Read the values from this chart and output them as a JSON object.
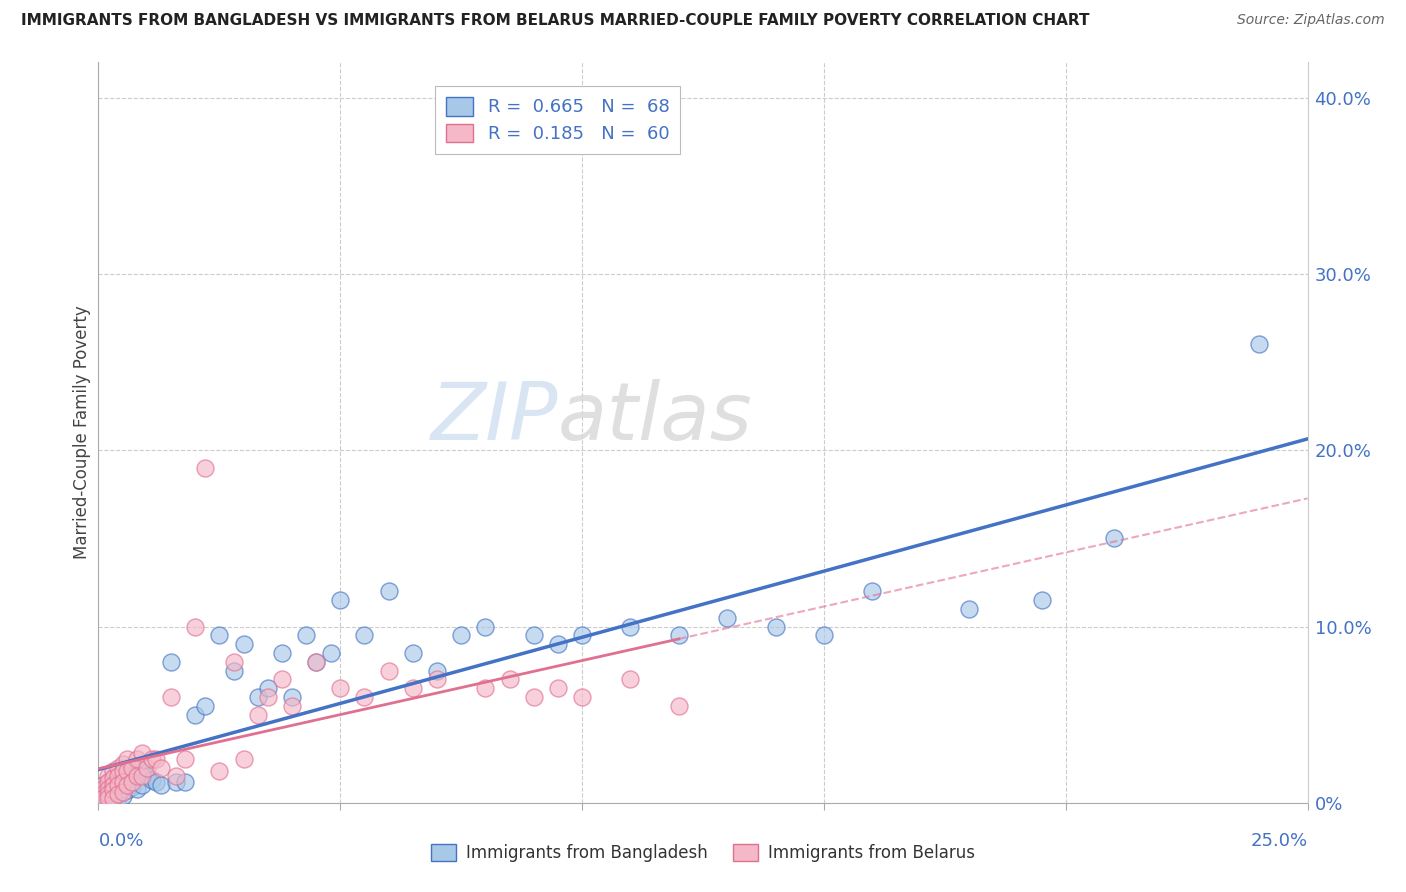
{
  "title": "IMMIGRANTS FROM BANGLADESH VS IMMIGRANTS FROM BELARUS MARRIED-COUPLE FAMILY POVERTY CORRELATION CHART",
  "source": "Source: ZipAtlas.com",
  "ylabel": "Married-Couple Family Poverty",
  "r_bangladesh": 0.665,
  "n_bangladesh": 68,
  "r_belarus": 0.185,
  "n_belarus": 60,
  "color_bangladesh": "#a8c8e8",
  "color_belarus": "#f4b8c8",
  "line_color_bangladesh": "#4472c4",
  "line_color_belarus": "#e07090",
  "watermark_zip": "ZIP",
  "watermark_atlas": "atlas",
  "xlim": [
    0,
    0.25
  ],
  "ylim": [
    0,
    0.42
  ],
  "yticks": [
    0.0,
    0.1,
    0.2,
    0.3,
    0.4
  ],
  "ytick_labels": [
    "0%",
    "10.0%",
    "20.0%",
    "30.0%",
    "40.0%"
  ],
  "bangladesh_x": [
    0.001,
    0.001,
    0.001,
    0.002,
    0.002,
    0.002,
    0.002,
    0.003,
    0.003,
    0.003,
    0.003,
    0.003,
    0.004,
    0.004,
    0.004,
    0.004,
    0.005,
    0.005,
    0.005,
    0.005,
    0.006,
    0.006,
    0.006,
    0.007,
    0.007,
    0.008,
    0.008,
    0.009,
    0.009,
    0.01,
    0.011,
    0.012,
    0.013,
    0.015,
    0.016,
    0.018,
    0.02,
    0.022,
    0.025,
    0.028,
    0.03,
    0.033,
    0.035,
    0.038,
    0.04,
    0.043,
    0.045,
    0.048,
    0.05,
    0.055,
    0.06,
    0.065,
    0.07,
    0.075,
    0.08,
    0.09,
    0.095,
    0.1,
    0.11,
    0.12,
    0.13,
    0.14,
    0.15,
    0.16,
    0.18,
    0.195,
    0.21,
    0.24
  ],
  "bangladesh_y": [
    0.01,
    0.006,
    0.004,
    0.012,
    0.008,
    0.005,
    0.003,
    0.014,
    0.01,
    0.007,
    0.004,
    0.002,
    0.015,
    0.01,
    0.007,
    0.003,
    0.016,
    0.012,
    0.008,
    0.004,
    0.018,
    0.013,
    0.007,
    0.015,
    0.009,
    0.016,
    0.008,
    0.018,
    0.01,
    0.015,
    0.013,
    0.012,
    0.01,
    0.08,
    0.012,
    0.012,
    0.05,
    0.055,
    0.095,
    0.075,
    0.09,
    0.06,
    0.065,
    0.085,
    0.06,
    0.095,
    0.08,
    0.085,
    0.115,
    0.095,
    0.12,
    0.085,
    0.075,
    0.095,
    0.1,
    0.095,
    0.09,
    0.095,
    0.1,
    0.095,
    0.105,
    0.1,
    0.095,
    0.12,
    0.11,
    0.115,
    0.15,
    0.26
  ],
  "belarus_x": [
    0.001,
    0.001,
    0.001,
    0.001,
    0.002,
    0.002,
    0.002,
    0.002,
    0.002,
    0.003,
    0.003,
    0.003,
    0.003,
    0.003,
    0.004,
    0.004,
    0.004,
    0.004,
    0.005,
    0.005,
    0.005,
    0.005,
    0.006,
    0.006,
    0.006,
    0.007,
    0.007,
    0.008,
    0.008,
    0.009,
    0.009,
    0.01,
    0.011,
    0.012,
    0.013,
    0.015,
    0.016,
    0.018,
    0.02,
    0.022,
    0.025,
    0.028,
    0.03,
    0.033,
    0.035,
    0.038,
    0.04,
    0.045,
    0.05,
    0.055,
    0.06,
    0.065,
    0.07,
    0.08,
    0.085,
    0.09,
    0.095,
    0.1,
    0.11,
    0.12
  ],
  "belarus_y": [
    0.01,
    0.008,
    0.005,
    0.003,
    0.015,
    0.012,
    0.008,
    0.005,
    0.003,
    0.018,
    0.014,
    0.01,
    0.007,
    0.003,
    0.02,
    0.015,
    0.01,
    0.005,
    0.022,
    0.018,
    0.012,
    0.006,
    0.025,
    0.018,
    0.01,
    0.02,
    0.012,
    0.025,
    0.015,
    0.028,
    0.015,
    0.02,
    0.025,
    0.025,
    0.02,
    0.06,
    0.015,
    0.025,
    0.1,
    0.19,
    0.018,
    0.08,
    0.025,
    0.05,
    0.06,
    0.07,
    0.055,
    0.08,
    0.065,
    0.06,
    0.075,
    0.065,
    0.07,
    0.065,
    0.07,
    0.06,
    0.065,
    0.06,
    0.07,
    0.055
  ]
}
